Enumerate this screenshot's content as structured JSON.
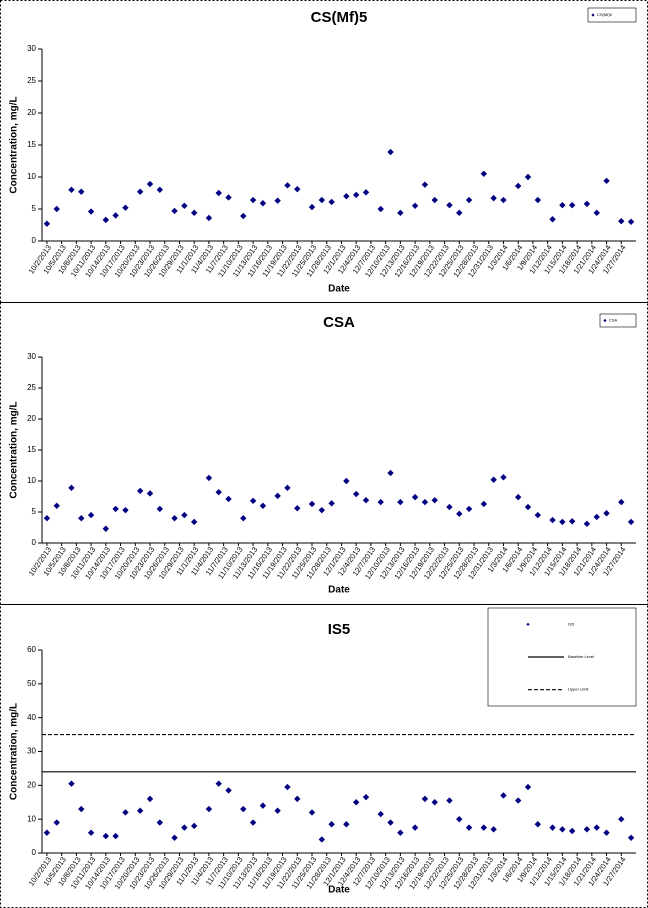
{
  "chart_data": [
    {
      "type": "scatter",
      "title": "CS(Mf)5",
      "x_label": "Date",
      "y_label": "Concentration, mg/L",
      "legend": "upper right",
      "x": [
        "10/2/2013",
        "10/4/2013",
        "10/7/2013",
        "10/9/2013",
        "10/11/2013",
        "10/14/2013",
        "10/16/2013",
        "10/18/2013",
        "10/21/2013",
        "10/23/2013",
        "10/25/2013",
        "10/28/2013",
        "10/30/2013",
        "11/1/2013",
        "11/4/2013",
        "11/6/2013",
        "11/8/2013",
        "11/11/2013",
        "11/13/2013",
        "11/15/2013",
        "11/18/2013",
        "11/20/2013",
        "11/22/2013",
        "11/25/2013",
        "11/27/2013",
        "11/29/2013",
        "12/2/2013",
        "12/4/2013",
        "12/6/2013",
        "12/9/2013",
        "12/11/2013",
        "12/13/2013",
        "12/16/2013",
        "12/18/2013",
        "12/20/2013",
        "12/23/2013",
        "12/25/2013",
        "12/27/2013",
        "12/30/2013",
        "1/1/2014",
        "1/3/2014",
        "1/6/2014",
        "1/8/2014",
        "1/10/2014",
        "1/13/2014",
        "1/15/2014",
        "1/17/2014",
        "1/20/2014",
        "1/22/2014",
        "1/24/2014",
        "1/27/2014",
        "1/29/2014"
      ],
      "series": [
        {
          "name": "CS(Mf)5",
          "color": "#000080",
          "values": [
            2.7,
            5,
            8,
            7.7,
            4.6,
            3.3,
            4,
            5.2,
            7.7,
            8.9,
            8,
            4.7,
            5.5,
            4.4,
            3.6,
            7.5,
            6.8,
            3.9,
            6.4,
            5.9,
            6.3,
            8.7,
            8.1,
            5.3,
            6.4,
            6.1,
            7,
            7.2,
            7.6,
            5,
            13.9,
            4.4,
            5.5,
            8.8,
            6.4,
            5.6,
            4.4,
            6.4,
            10.5,
            6.7,
            6.4,
            8.6,
            10,
            6.4,
            3.4,
            5.6,
            5.6,
            5.8,
            4.4,
            9.4,
            3.1,
            3
          ]
        }
      ],
      "xlim": [
        "10/1/2013",
        "1/30/2014"
      ],
      "xticks": [
        "10/2/2013",
        "10/5/2013",
        "10/8/2013",
        "10/11/2013",
        "10/14/2013",
        "10/17/2013",
        "10/20/2013",
        "10/23/2013",
        "10/26/2013",
        "10/29/2013",
        "11/1/2013",
        "11/4/2013",
        "11/7/2013",
        "11/10/2013",
        "11/13/2013",
        "11/16/2013",
        "11/19/2013",
        "11/22/2013",
        "11/25/2013",
        "11/28/2013",
        "12/1/2013",
        "12/4/2013",
        "12/7/2013",
        "12/10/2013",
        "12/13/2013",
        "12/16/2013",
        "12/19/2013",
        "12/22/2013",
        "12/25/2013",
        "12/28/2013",
        "12/31/2013",
        "1/3/2014",
        "1/6/2014",
        "1/9/2014",
        "1/12/2014",
        "1/15/2014",
        "1/18/2014",
        "1/21/2014",
        "1/24/2014",
        "1/27/2014"
      ],
      "ylim": [
        0,
        30
      ],
      "yticks": [
        0,
        5,
        10,
        15,
        20,
        25,
        30
      ]
    },
    {
      "type": "scatter",
      "title": "CSA",
      "x_label": "Date",
      "y_label": "Concentration, mg/L",
      "legend": "upper right",
      "x": [
        "10/2/2013",
        "10/4/2013",
        "10/7/2013",
        "10/9/2013",
        "10/11/2013",
        "10/14/2013",
        "10/16/2013",
        "10/18/2013",
        "10/21/2013",
        "10/23/2013",
        "10/25/2013",
        "10/28/2013",
        "10/30/2013",
        "11/1/2013",
        "11/4/2013",
        "11/6/2013",
        "11/8/2013",
        "11/11/2013",
        "11/13/2013",
        "11/15/2013",
        "11/18/2013",
        "11/20/2013",
        "11/22/2013",
        "11/25/2013",
        "11/27/2013",
        "11/29/2013",
        "12/2/2013",
        "12/4/2013",
        "12/6/2013",
        "12/9/2013",
        "12/11/2013",
        "12/13/2013",
        "12/16/2013",
        "12/18/2013",
        "12/20/2013",
        "12/23/2013",
        "12/25/2013",
        "12/27/2013",
        "12/30/2013",
        "1/1/2014",
        "1/3/2014",
        "1/6/2014",
        "1/8/2014",
        "1/10/2014",
        "1/13/2014",
        "1/15/2014",
        "1/17/2014",
        "1/20/2014",
        "1/22/2014",
        "1/24/2014",
        "1/27/2014",
        "1/29/2014"
      ],
      "series": [
        {
          "name": "CSA",
          "color": "#000080",
          "values": [
            4,
            6,
            8.9,
            4,
            4.5,
            2.3,
            5.5,
            5.3,
            8.4,
            8,
            5.5,
            4,
            4.5,
            3.4,
            10.5,
            8.2,
            7.1,
            4,
            6.8,
            6,
            7.6,
            8.9,
            5.6,
            6.3,
            5.3,
            6.4,
            10,
            7.9,
            6.9,
            6.6,
            11.3,
            6.6,
            7.4,
            6.6,
            6.9,
            5.8,
            4.7,
            5.5,
            6.3,
            10.2,
            10.6,
            7.4,
            5.8,
            4.5,
            3.7,
            3.4,
            3.5,
            3.1,
            4.2,
            4.8,
            6.6,
            3.4
          ]
        }
      ],
      "xlim": [
        "10/1/2013",
        "1/30/2014"
      ],
      "xticks": [
        "10/2/2013",
        "10/5/2013",
        "10/8/2013",
        "10/11/2013",
        "10/14/2013",
        "10/17/2013",
        "10/20/2013",
        "10/23/2013",
        "10/26/2013",
        "10/29/2013",
        "11/1/2013",
        "11/4/2013",
        "11/7/2013",
        "11/10/2013",
        "11/13/2013",
        "11/16/2013",
        "11/19/2013",
        "11/22/2013",
        "11/25/2013",
        "11/28/2013",
        "12/1/2013",
        "12/4/2013",
        "12/7/2013",
        "12/10/2013",
        "12/13/2013",
        "12/16/2013",
        "12/19/2013",
        "12/22/2013",
        "12/25/2013",
        "12/28/2013",
        "12/31/2013",
        "1/3/2014",
        "1/6/2014",
        "1/9/2014",
        "1/12/2014",
        "1/15/2014",
        "1/18/2014",
        "1/21/2014",
        "1/24/2014",
        "1/27/2014"
      ],
      "ylim": [
        0,
        30
      ],
      "yticks": [
        0,
        5,
        10,
        15,
        20,
        25,
        30
      ]
    },
    {
      "type": "scatter",
      "title": "IS5",
      "x_label": "Date",
      "y_label": "Concentration, mg/L",
      "legend": "upper right",
      "x": [
        "10/2/2013",
        "10/4/2013",
        "10/7/2013",
        "10/9/2013",
        "10/11/2013",
        "10/14/2013",
        "10/16/2013",
        "10/18/2013",
        "10/21/2013",
        "10/23/2013",
        "10/25/2013",
        "10/28/2013",
        "10/30/2013",
        "11/1/2013",
        "11/4/2013",
        "11/6/2013",
        "11/8/2013",
        "11/11/2013",
        "11/13/2013",
        "11/15/2013",
        "11/18/2013",
        "11/20/2013",
        "11/22/2013",
        "11/25/2013",
        "11/27/2013",
        "11/29/2013",
        "12/2/2013",
        "12/4/2013",
        "12/6/2013",
        "12/9/2013",
        "12/11/2013",
        "12/13/2013",
        "12/16/2013",
        "12/18/2013",
        "12/20/2013",
        "12/23/2013",
        "12/25/2013",
        "12/27/2013",
        "12/30/2013",
        "1/1/2014",
        "1/3/2014",
        "1/6/2014",
        "1/8/2014",
        "1/10/2014",
        "1/13/2014",
        "1/15/2014",
        "1/17/2014",
        "1/20/2014",
        "1/22/2014",
        "1/24/2014",
        "1/27/2014",
        "1/29/2014"
      ],
      "series": [
        {
          "name": "IS5",
          "color": "#000080",
          "values": [
            6,
            9,
            20.5,
            13,
            6,
            5,
            5,
            12,
            12.5,
            16,
            9,
            4.5,
            7.5,
            8,
            13,
            20.5,
            18.5,
            13,
            9,
            14,
            12.5,
            19.5,
            16,
            12,
            4,
            8.5,
            8.5,
            15,
            16.5,
            11.5,
            9,
            6,
            7.5,
            16,
            15,
            15.5,
            10,
            7.5,
            7.5,
            7,
            17,
            15.5,
            19.5,
            8.5,
            7.5,
            7,
            6.5,
            7,
            7.5,
            6,
            10,
            4.5
          ]
        }
      ],
      "reference_lines": [
        {
          "name": "Baseline Level",
          "value": 24,
          "style": "solid",
          "color": "#000000"
        },
        {
          "name": "Upper Limit",
          "value": 35,
          "style": "dashed",
          "color": "#000000"
        }
      ],
      "xlim": [
        "10/1/2013",
        "1/30/2014"
      ],
      "xticks": [
        "10/2/2013",
        "10/5/2013",
        "10/8/2013",
        "10/11/2013",
        "10/14/2013",
        "10/17/2013",
        "10/20/2013",
        "10/23/2013",
        "10/26/2013",
        "10/29/2013",
        "11/1/2013",
        "11/4/2013",
        "11/7/2013",
        "11/10/2013",
        "11/13/2013",
        "11/16/2013",
        "11/19/2013",
        "11/22/2013",
        "11/25/2013",
        "11/28/2013",
        "12/1/2013",
        "12/4/2013",
        "12/7/2013",
        "12/10/2013",
        "12/13/2013",
        "12/16/2013",
        "12/19/2013",
        "12/22/2013",
        "12/25/2013",
        "12/28/2013",
        "12/31/2013",
        "1/3/2014",
        "1/6/2014",
        "1/9/2014",
        "1/12/2014",
        "1/15/2014",
        "1/18/2014",
        "1/21/2014",
        "1/24/2014",
        "1/27/2014"
      ],
      "ylim": [
        0,
        60
      ],
      "yticks": [
        0,
        10,
        20,
        30,
        40,
        50,
        60
      ]
    }
  ]
}
